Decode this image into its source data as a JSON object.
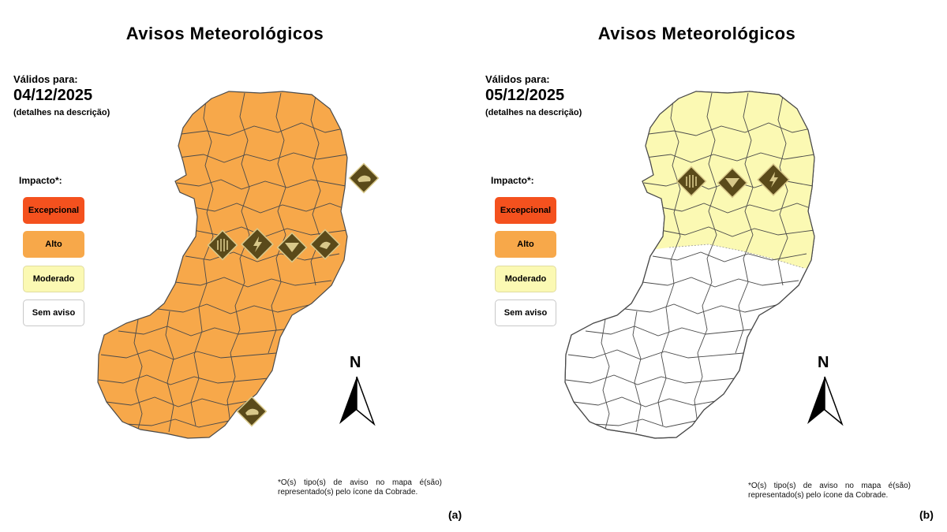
{
  "colors": {
    "excepcional": "#f4511e",
    "alto": "#f7a84a",
    "moderado": "#fbf9b3",
    "sem_aviso": "#ffffff",
    "icon": "#5a4a1a"
  },
  "panels": [
    {
      "title": "Avisos Meteorológicos",
      "validos_label": "Válidos para:",
      "date": "04/12/2025",
      "details": "(detalhes na descrição)",
      "impacto_label": "Impacto*:",
      "legend": [
        "Excepcional",
        "Alto",
        "Moderado",
        "Sem aviso"
      ],
      "north": "N",
      "footnote": "*O(s) tipo(s) de aviso no mapa é(são) representado(s) pelo ícone da Cobrade.",
      "label": "(a)",
      "map_fill": "Alto",
      "warning_icons": [
        "storm-warning-icon",
        "heavy-rain-warning-icon",
        "lightning-warning-icon",
        "flood-warning-icon",
        "hail-warning-icon",
        "wind-warning-icon"
      ]
    },
    {
      "title": "Avisos Meteorológicos",
      "validos_label": "Válidos para:",
      "date": "05/12/2025",
      "details": "(detalhes na descrição)",
      "impacto_label": "Impacto*:",
      "legend": [
        "Excepcional",
        "Alto",
        "Moderado",
        "Sem aviso"
      ],
      "north": "N",
      "footnote": "*O(s) tipo(s) de aviso no mapa é(são) representado(s) pelo ícone da Cobrade.",
      "label": "(b)",
      "map_fill": "Moderado (norte) / Sem aviso (sul)",
      "warning_icons": [
        "storm-warning-icon",
        "heavy-rain-warning-icon",
        "lightning-warning-icon"
      ]
    }
  ]
}
